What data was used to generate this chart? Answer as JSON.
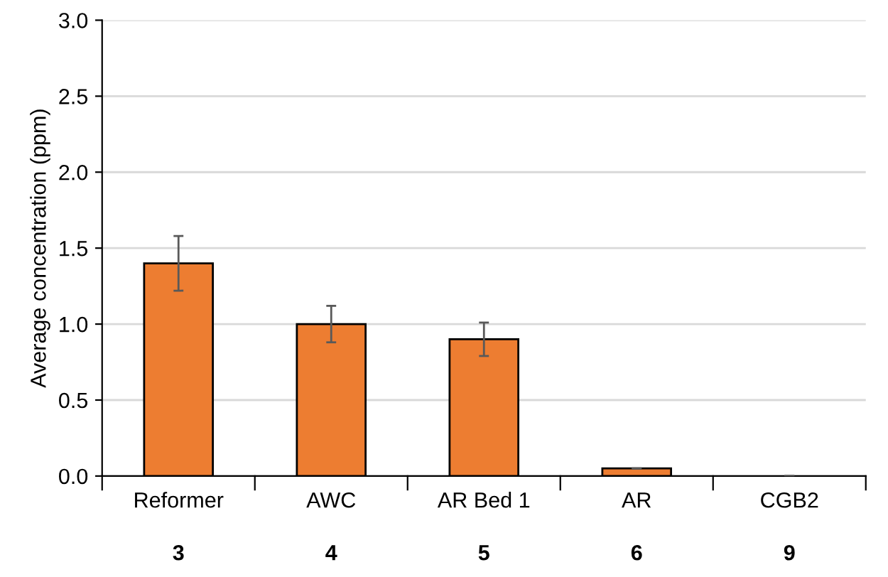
{
  "chart_data": {
    "type": "bar",
    "ylabel": "Average concentration (ppm)",
    "categories": [
      "Reformer",
      "AWC",
      "AR Bed 1",
      "AR",
      "CGB2"
    ],
    "values": [
      1.4,
      1.0,
      0.9,
      0.05,
      0
    ],
    "errors": [
      0.18,
      0.12,
      0.11,
      null,
      null
    ],
    "color": "#ed7d31",
    "ylim": [
      0,
      3.0
    ],
    "yticks": [
      {
        "value": 0,
        "label": "0.0"
      },
      {
        "value": 0.5,
        "label": "0.5"
      },
      {
        "value": 1.0,
        "label": "1.0"
      },
      {
        "value": 1.5,
        "label": "1.5"
      },
      {
        "value": 2.0,
        "label": "2.0"
      },
      {
        "value": 2.5,
        "label": "2.5"
      },
      {
        "value": 3.0,
        "label": "3.0"
      }
    ],
    "grid": "y",
    "annotations": [
      "3",
      "4",
      "5",
      "6",
      "9"
    ]
  }
}
